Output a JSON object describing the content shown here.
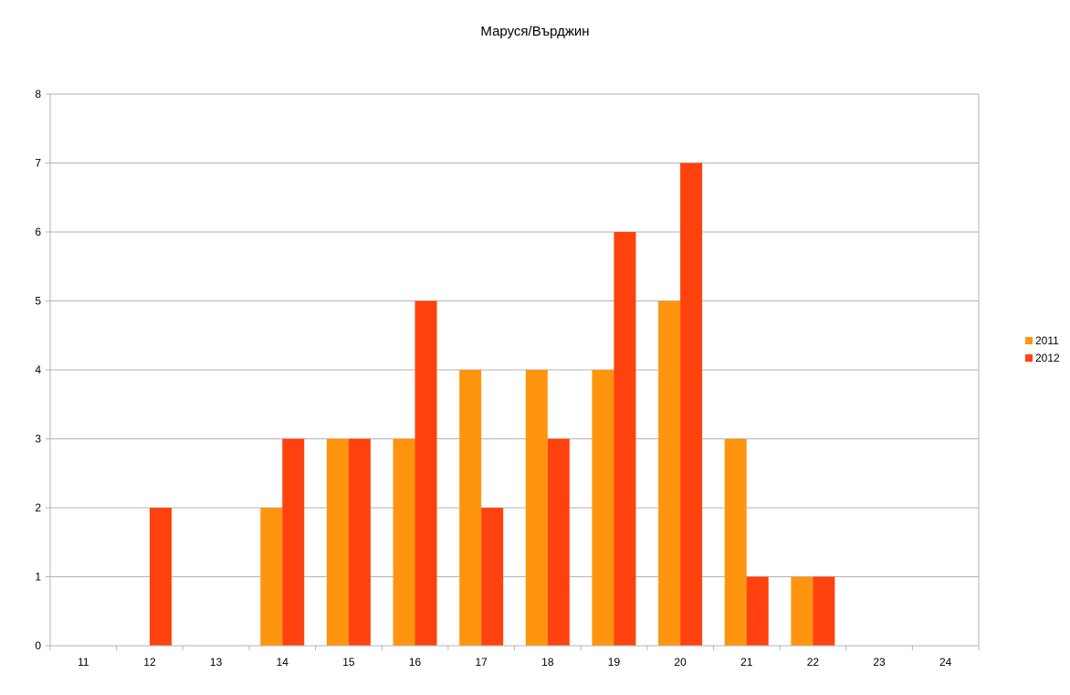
{
  "chart_data": {
    "type": "bar",
    "title": "Маруся/Върджин",
    "xlabel": "",
    "ylabel": "",
    "categories": [
      "11",
      "12",
      "13",
      "14",
      "15",
      "16",
      "17",
      "18",
      "19",
      "20",
      "21",
      "22",
      "23",
      "24"
    ],
    "series": [
      {
        "name": "2011",
        "color": "#ff950e",
        "values": [
          0,
          0,
          0,
          2,
          3,
          3,
          4,
          4,
          4,
          5,
          3,
          1,
          0,
          0
        ]
      },
      {
        "name": "2012",
        "color": "#ff420e",
        "values": [
          0,
          2,
          0,
          3,
          3,
          5,
          2,
          3,
          6,
          7,
          1,
          1,
          0,
          0
        ]
      }
    ],
    "ylim": [
      0,
      8
    ],
    "yticks": [
      "0",
      "1",
      "2",
      "3",
      "4",
      "5",
      "6",
      "7",
      "8"
    ],
    "grid": true,
    "legend_position": "right"
  }
}
